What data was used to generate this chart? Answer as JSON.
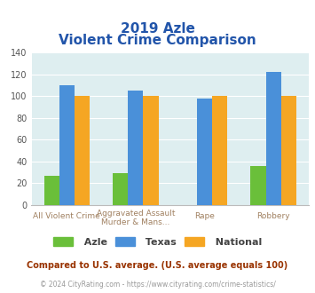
{
  "title_line1": "2019 Azle",
  "title_line2": "Violent Crime Comparison",
  "top_labels": [
    "",
    "Aggravated Assault",
    "",
    ""
  ],
  "bottom_labels": [
    "All Violent Crime",
    "Murder & Mans...",
    "Rape",
    "Robbery"
  ],
  "azle": [
    27,
    29,
    0,
    36
  ],
  "texas": [
    110,
    105,
    98,
    122
  ],
  "national": [
    100,
    100,
    100,
    100
  ],
  "azle_color": "#6abf3a",
  "texas_color": "#4a90d9",
  "national_color": "#f5a623",
  "ylim": [
    0,
    140
  ],
  "yticks": [
    0,
    20,
    40,
    60,
    80,
    100,
    120,
    140
  ],
  "background_color": "#deeef0",
  "title_color": "#2255aa",
  "axis_label_color": "#a08060",
  "legend_label_color": "#444444",
  "footnote1": "Compared to U.S. average. (U.S. average equals 100)",
  "footnote2": "© 2024 CityRating.com - https://www.cityrating.com/crime-statistics/",
  "footnote1_color": "#993300",
  "footnote2_color": "#999999",
  "bar_width": 0.22,
  "grid_color": "#ffffff",
  "spine_color": "#bbbbbb"
}
